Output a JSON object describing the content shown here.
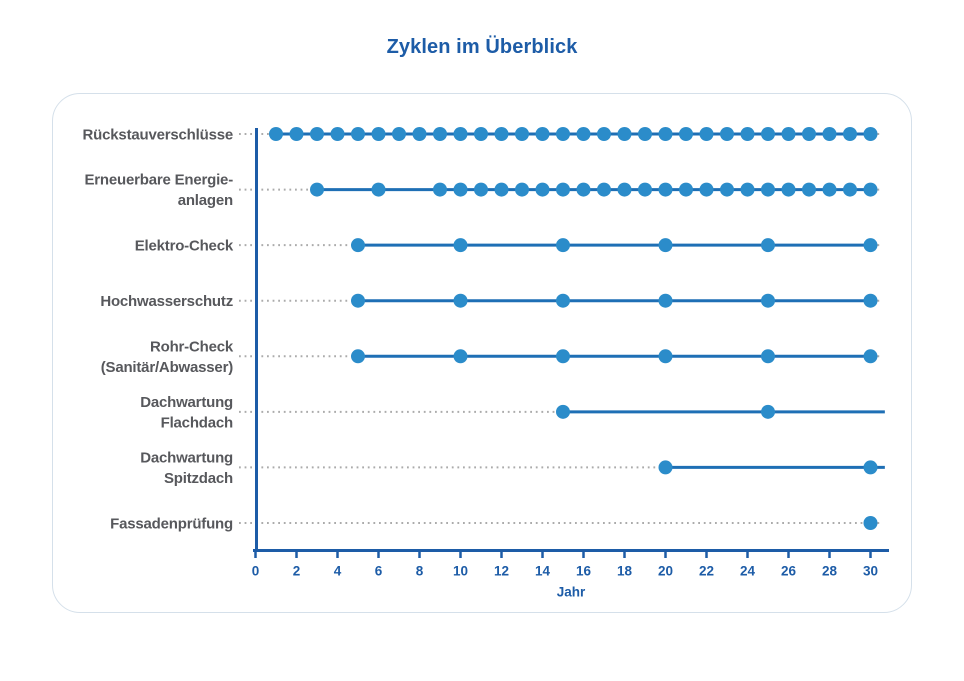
{
  "chart_data": {
    "type": "scatter",
    "title": "Zyklen im Überblick",
    "xlabel": "Jahr",
    "xlim": [
      0,
      30
    ],
    "x_ticks": [
      0,
      2,
      4,
      6,
      8,
      10,
      12,
      14,
      16,
      18,
      20,
      22,
      24,
      26,
      28,
      30
    ],
    "grid": false,
    "legend": "none",
    "series": [
      {
        "label": "Rückstauverschlüsse",
        "label_lines": [
          "Rückstauverschlüsse"
        ],
        "dots": [
          1,
          2,
          3,
          4,
          5,
          6,
          7,
          8,
          9,
          10,
          11,
          12,
          13,
          14,
          15,
          16,
          17,
          18,
          19,
          20,
          21,
          22,
          23,
          24,
          25,
          26,
          27,
          28,
          29,
          30
        ],
        "line": [
          1,
          30
        ]
      },
      {
        "label": "Erneuerbare Energie-anlagen",
        "label_lines": [
          "Erneuerbare Energie-",
          "anlagen"
        ],
        "dots": [
          3,
          6,
          9,
          10,
          11,
          12,
          13,
          14,
          15,
          16,
          17,
          18,
          19,
          20,
          21,
          22,
          23,
          24,
          25,
          26,
          27,
          28,
          29,
          30
        ],
        "line": [
          3,
          30
        ]
      },
      {
        "label": "Elektro-Check",
        "label_lines": [
          "Elektro-Check"
        ],
        "dots": [
          5,
          10,
          15,
          20,
          25,
          30
        ],
        "line": [
          5,
          30
        ]
      },
      {
        "label": "Hochwasserschutz",
        "label_lines": [
          "Hochwasserschutz"
        ],
        "dots": [
          5,
          10,
          15,
          20,
          25,
          30
        ],
        "line": [
          5,
          30
        ]
      },
      {
        "label": "Rohr-Check (Sanitär/Abwasser)",
        "label_lines": [
          "Rohr-Check",
          "(Sanitär/Abwasser)"
        ],
        "dots": [
          5,
          10,
          15,
          20,
          25,
          30
        ],
        "line": [
          5,
          30
        ]
      },
      {
        "label": "Dachwartung Flachdach",
        "label_lines": [
          "Dachwartung",
          "Flachdach"
        ],
        "dots": [
          15,
          25
        ],
        "line": [
          15,
          30.7
        ]
      },
      {
        "label": "Dachwartung Spitzdach",
        "label_lines": [
          "Dachwartung",
          "Spitzdach"
        ],
        "dots": [
          20,
          30
        ],
        "line": [
          20,
          30.7
        ]
      },
      {
        "label": "Fassadenprüfung",
        "label_lines": [
          "Fassadenprüfung"
        ],
        "dots": [
          30
        ],
        "line": null
      }
    ],
    "colors": {
      "dot": "#2b8cca",
      "line": "#1e6fb5",
      "axis": "#1d5ca7",
      "tick_label": "#1d5ca7",
      "title": "#1d5ca7",
      "category_label": "#57585c",
      "leader_dots": "#ababab",
      "card_border": "#d5e0ea",
      "background": "#ffffff"
    }
  }
}
